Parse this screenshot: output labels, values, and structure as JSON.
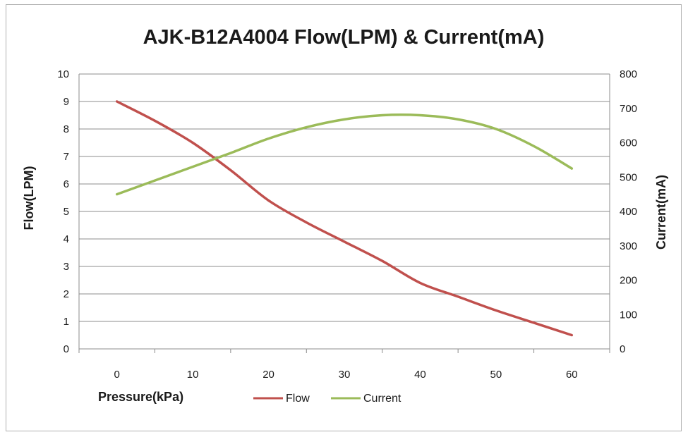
{
  "chart_data": {
    "type": "line",
    "title": "AJK-B12A4004 Flow(LPM) & Current(mA)",
    "xlabel": "Pressure(kPa)",
    "ylabel_left": "Flow(LPM)",
    "ylabel_right": "Current(mA)",
    "x": [
      0,
      5,
      10,
      15,
      20,
      25,
      30,
      35,
      40,
      45,
      50,
      55,
      60
    ],
    "x_ticks": [
      "0",
      "10",
      "20",
      "30",
      "40",
      "50",
      "60"
    ],
    "xlim": [
      -5,
      65
    ],
    "ylim_left": [
      0,
      10
    ],
    "ylim_right": [
      0,
      800
    ],
    "y_ticks_left": [
      "0",
      "1",
      "2",
      "3",
      "4",
      "5",
      "6",
      "7",
      "8",
      "9",
      "10"
    ],
    "y_ticks_right": [
      "0",
      "100",
      "200",
      "300",
      "400",
      "500",
      "600",
      "700",
      "800"
    ],
    "grid": true,
    "legend_position": "bottom",
    "series": [
      {
        "name": "Flow",
        "axis": "left",
        "color": "#c0504d",
        "values": [
          9.0,
          8.3,
          7.5,
          6.5,
          5.4,
          4.6,
          3.9,
          3.2,
          2.4,
          1.9,
          1.4,
          0.95,
          0.5
        ]
      },
      {
        "name": "Current",
        "axis": "right",
        "color": "#9bbb59",
        "values": [
          450,
          490,
          530,
          570,
          612,
          645,
          668,
          680,
          680,
          668,
          640,
          590,
          525
        ]
      }
    ]
  }
}
